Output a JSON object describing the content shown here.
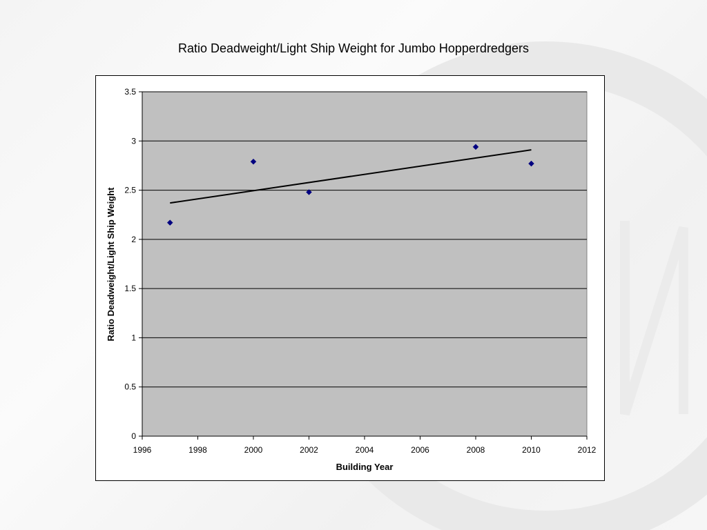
{
  "chart_data": {
    "type": "scatter",
    "title": "Ratio Deadweight/Light Ship Weight for Jumbo Hopperdredgers",
    "xlabel": "Building Year",
    "ylabel": "Ratio Deadweight/Light Ship Weight",
    "xlim": [
      1996,
      2012
    ],
    "ylim": [
      0,
      3.5
    ],
    "x_ticks": [
      1996,
      1998,
      2000,
      2002,
      2004,
      2006,
      2008,
      2010,
      2012
    ],
    "y_ticks": [
      0,
      0.5,
      1,
      1.5,
      2,
      2.5,
      3,
      3.5
    ],
    "y_tick_labels": [
      "0",
      "0.5",
      "1",
      "1.5",
      "2",
      "2.5",
      "3",
      "3.5"
    ],
    "grid": "horizontal",
    "legend": "none",
    "series": [
      {
        "points": [
          {
            "x": 1997,
            "y": 2.17
          },
          {
            "x": 2000,
            "y": 2.79
          },
          {
            "x": 2002,
            "y": 2.48
          },
          {
            "x": 2008,
            "y": 2.94
          },
          {
            "x": 2010,
            "y": 2.77
          }
        ],
        "color": "#000080",
        "marker": "diamond"
      }
    ],
    "trendline": {
      "type": "linear",
      "x_start": 1997,
      "x_end": 2010,
      "y_start": 2.37,
      "y_end": 2.91,
      "color": "#000000"
    },
    "plot_background": "#c0c0c0"
  }
}
